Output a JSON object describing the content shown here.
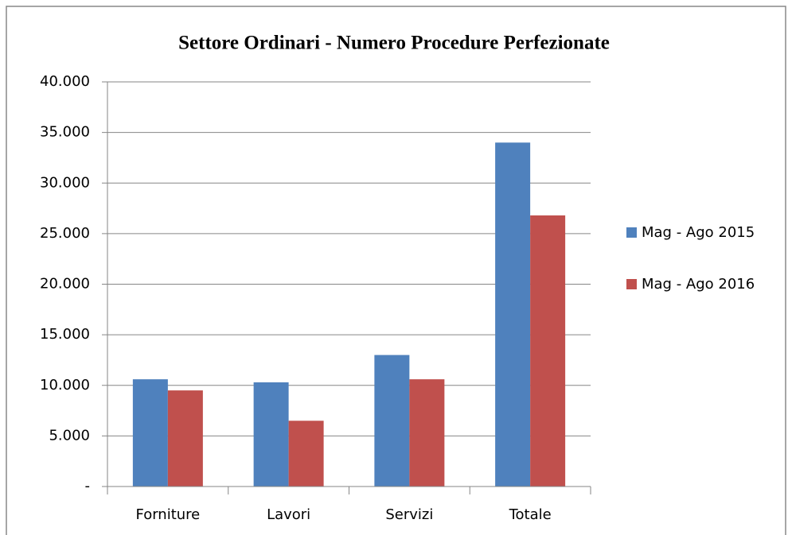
{
  "chart_data": {
    "type": "bar",
    "title": "Settore Ordinari - Numero Procedure Perfezionate",
    "categories": [
      "Forniture",
      "Lavori",
      "Servizi",
      "Totale"
    ],
    "series": [
      {
        "name": "Mag - Ago 2015",
        "color": "#4f81bd",
        "values": [
          10600,
          10300,
          13000,
          34000
        ]
      },
      {
        "name": "Mag - Ago 2016",
        "color": "#c0504d",
        "values": [
          9500,
          6500,
          10600,
          26800
        ]
      }
    ],
    "ylim": [
      0,
      40000
    ],
    "yticks": [
      {
        "value": 0,
        "label": "-"
      },
      {
        "value": 5000,
        "label": "5.000"
      },
      {
        "value": 10000,
        "label": "10.000"
      },
      {
        "value": 15000,
        "label": "15.000"
      },
      {
        "value": 20000,
        "label": "20.000"
      },
      {
        "value": 25000,
        "label": "25.000"
      },
      {
        "value": 30000,
        "label": "30.000"
      },
      {
        "value": 35000,
        "label": "35.000"
      },
      {
        "value": 40000,
        "label": "40.000"
      }
    ],
    "grid": true,
    "legend": "right"
  }
}
